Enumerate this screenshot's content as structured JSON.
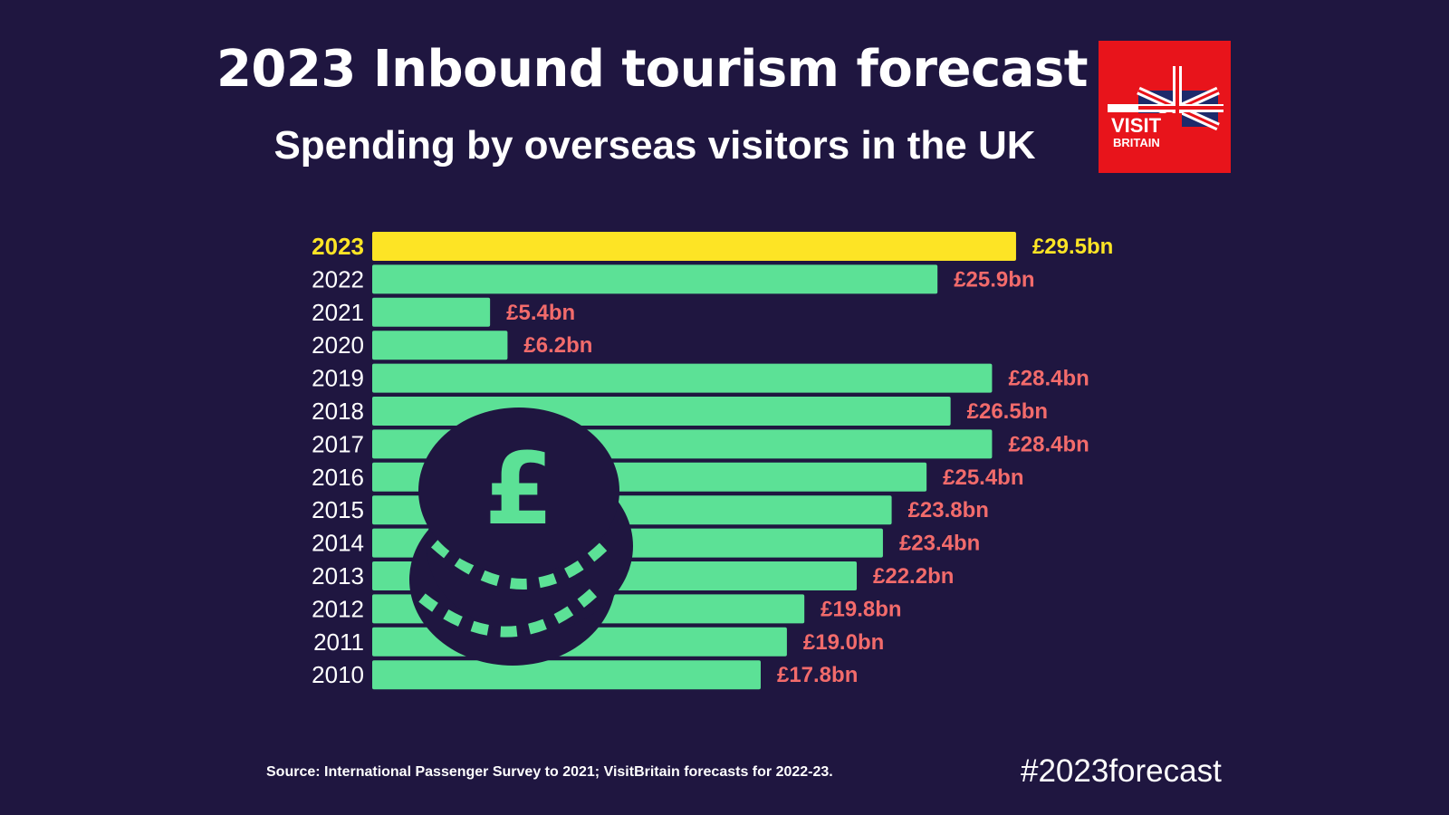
{
  "header": {
    "title": "2023 Inbound tourism forecast",
    "subtitle": "Spending by overseas visitors in the UK",
    "logo_text": "VISIT BRITAIN"
  },
  "footer": {
    "source": "Source: International Passenger Survey to 2021; VisitBritain forecasts for 2022-23.",
    "hashtag": "#2023forecast"
  },
  "colors": {
    "background": "#1f1640",
    "bar": "#5ce196",
    "highlight_bar": "#fde425",
    "value_label": "#f26b6b",
    "highlight_label": "#fde425"
  },
  "chart_data": {
    "type": "bar",
    "orientation": "horizontal",
    "categories": [
      "2023",
      "2022",
      "2021",
      "2020",
      "2019",
      "2018",
      "2017",
      "2016",
      "2015",
      "2014",
      "2013",
      "2012",
      "2011",
      "2010"
    ],
    "values": [
      29.5,
      25.9,
      5.4,
      6.2,
      28.4,
      26.5,
      28.4,
      25.4,
      23.8,
      23.4,
      22.2,
      19.8,
      19.0,
      17.8
    ],
    "labels": [
      "£29.5bn",
      "£25.9bn",
      "£5.4bn",
      "£6.2bn",
      "£28.4bn",
      "£26.5bn",
      "£28.4bn",
      "£25.4bn",
      "£23.8bn",
      "£23.4bn",
      "£22.2bn",
      "£19.8bn",
      "£19.0bn",
      "£17.8bn"
    ],
    "highlight": "2023",
    "unit": "£bn",
    "title": "Spending by overseas visitors in the UK",
    "xlabel": "",
    "ylabel": "",
    "xlim": [
      0,
      30
    ],
    "grid": false,
    "legend": "none"
  }
}
